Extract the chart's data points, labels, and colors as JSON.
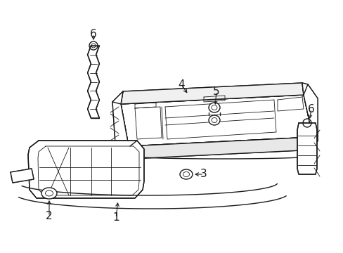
{
  "background_color": "#ffffff",
  "line_color": "#1a1a1a",
  "lw": 1.0,
  "tlw": 0.6,
  "fig_w": 4.89,
  "fig_h": 3.6,
  "dpi": 100,
  "xlim": [
    0,
    489
  ],
  "ylim": [
    0,
    360
  ]
}
